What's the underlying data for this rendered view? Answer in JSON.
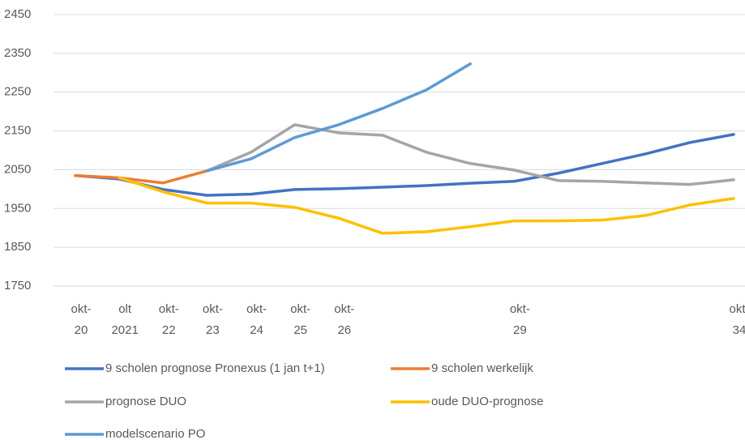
{
  "chart_data": {
    "type": "line",
    "categories": [
      "okt-20",
      "olt 2021",
      "okt-22",
      "okt-23",
      "okt-24",
      "okt-25",
      "okt-26",
      null,
      null,
      null,
      "okt-29",
      null,
      null,
      null,
      null,
      "okt-34"
    ],
    "series": [
      {
        "name": "9 scholen prognose Pronexus (1 jan t+1)",
        "color": "#4472c4",
        "values": [
          2035,
          2026,
          1999,
          1984,
          1987,
          1999,
          2001,
          2005,
          2009,
          2015,
          2020,
          2041,
          2066,
          2091,
          2120,
          2141
        ]
      },
      {
        "name": "9 scholen werkelijk",
        "color": "#ed7d31",
        "values": [
          2035,
          2029,
          2016,
          2047,
          null,
          null,
          null,
          null,
          null,
          null,
          null,
          null,
          null,
          null,
          null,
          null
        ]
      },
      {
        "name": "prognose DUO",
        "color": "#a5a5a5",
        "values": [
          null,
          null,
          null,
          2047,
          2095,
          2166,
          2145,
          2139,
          2095,
          2066,
          2049,
          2022,
          2020,
          2016,
          2012,
          2024
        ]
      },
      {
        "name": "oude DUO-prognose",
        "color": "#ffc000",
        "values": [
          null,
          2029,
          1993,
          1964,
          1964,
          1953,
          1925,
          1886,
          1890,
          1903,
          1918,
          1918,
          1920,
          1932,
          1959,
          1976
        ]
      },
      {
        "name": "modelscenario PO",
        "color": "#5b9bd5",
        "values": [
          null,
          null,
          null,
          2047,
          2078,
          2133,
          2166,
          2208,
          2256,
          2323,
          null,
          null,
          null,
          null,
          null,
          null
        ]
      }
    ],
    "ylim": [
      1750,
      2450
    ],
    "yticks": [
      1750,
      1850,
      1950,
      2050,
      2150,
      2250,
      2350,
      2450
    ],
    "grid": true
  }
}
